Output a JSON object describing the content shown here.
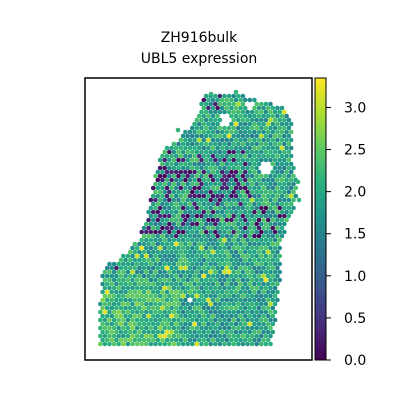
{
  "chart_data": {
    "type": "scatter",
    "title_lines": [
      "ZH916bulk",
      "UBL5 expression"
    ],
    "xlabel": "",
    "ylabel": "",
    "colormap": "viridis",
    "colorbar": {
      "vmin": 0.0,
      "vmax": 3.35,
      "ticks": [
        0.0,
        0.5,
        1.0,
        1.5,
        2.0,
        2.5,
        3.0
      ],
      "tick_labels": [
        "0.0",
        "0.5",
        "1.0",
        "1.5",
        "2.0",
        "2.5",
        "3.0"
      ]
    },
    "points_note_values": {
      "typical_range": [
        1.5,
        2.6
      ],
      "low_cluster_value": 0.2,
      "high_spots_value": 3.2
    },
    "axes_visible": false,
    "grid": false
  }
}
